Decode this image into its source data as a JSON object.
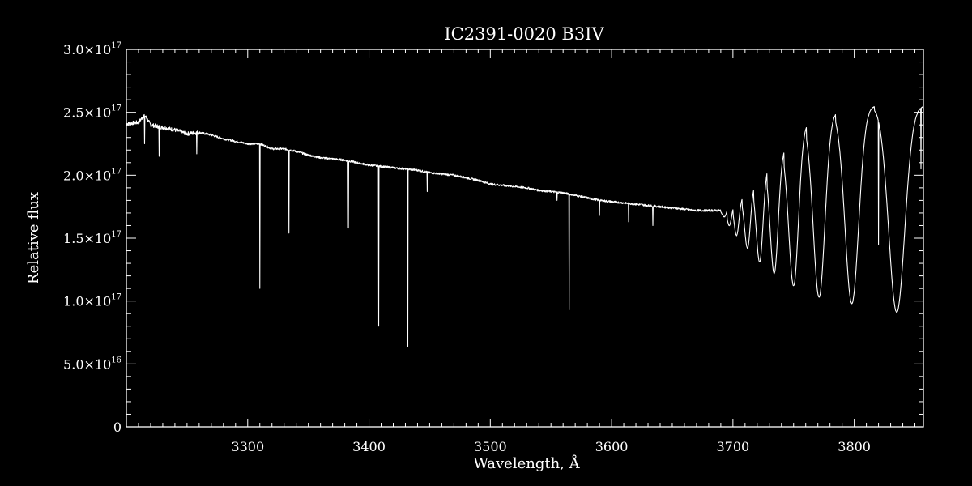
{
  "chart_data": {
    "type": "line",
    "title": "IC2391-0020   B3IV",
    "xlabel": "Wavelength, Å",
    "ylabel": "Relative flux",
    "xlim": [
      3200,
      3857
    ],
    "ylim": [
      0,
      3e+17
    ],
    "x_ticks": [
      {
        "value": 3300,
        "label": "3300"
      },
      {
        "value": 3400,
        "label": "3400"
      },
      {
        "value": 3500,
        "label": "3500"
      },
      {
        "value": 3600,
        "label": "3600"
      },
      {
        "value": 3700,
        "label": "3700"
      },
      {
        "value": 3800,
        "label": "3800"
      }
    ],
    "y_ticks": [
      {
        "value": 0,
        "mantissa": "0",
        "exponent": ""
      },
      {
        "value": 5e+16,
        "mantissa": "5.0×10",
        "exponent": "16"
      },
      {
        "value": 1e+17,
        "mantissa": "1.0×10",
        "exponent": "17"
      },
      {
        "value": 1.5e+17,
        "mantissa": "1.5×10",
        "exponent": "17"
      },
      {
        "value": 2e+17,
        "mantissa": "2.0×10",
        "exponent": "17"
      },
      {
        "value": 2.5e+17,
        "mantissa": "2.5×10",
        "exponent": "17"
      },
      {
        "value": 3e+17,
        "mantissa": "3.0×10",
        "exponent": "17"
      }
    ],
    "grid": false,
    "series": [
      {
        "x": [
          3200,
          3210,
          3215,
          3220,
          3230,
          3240,
          3250,
          3260,
          3270,
          3280,
          3290,
          3300,
          3310,
          3320,
          3330,
          3340,
          3350,
          3360,
          3370,
          3380,
          3390,
          3400,
          3410,
          3420,
          3430,
          3440,
          3450,
          3460,
          3470,
          3480,
          3490,
          3500,
          3510,
          3520,
          3530,
          3540,
          3550,
          3560,
          3570,
          3580,
          3590,
          3600,
          3610,
          3620,
          3630,
          3640,
          3650,
          3660,
          3670,
          3680,
          3690
        ],
        "y": [
          2.41e+17,
          2.42e+17,
          2.48e+17,
          2.4e+17,
          2.38e+17,
          2.36e+17,
          2.33e+17,
          2.34e+17,
          2.32e+17,
          2.29e+17,
          2.27e+17,
          2.25e+17,
          2.25e+17,
          2.21e+17,
          2.21e+17,
          2.19e+17,
          2.16e+17,
          2.14e+17,
          2.13e+17,
          2.12e+17,
          2.1e+17,
          2.08e+17,
          2.07e+17,
          2.06e+17,
          2.05e+17,
          2.04e+17,
          2.02e+17,
          2.01e+17,
          2e+17,
          1.98e+17,
          1.96e+17,
          1.93e+17,
          1.92e+17,
          1.91e+17,
          1.9e+17,
          1.88e+17,
          1.87e+17,
          1.86e+17,
          1.84e+17,
          1.82e+17,
          1.8e+17,
          1.79e+17,
          1.78e+17,
          1.77e+17,
          1.76e+17,
          1.75e+17,
          1.74e+17,
          1.73e+17,
          1.72e+17,
          1.72e+17,
          1.72e+17
        ]
      }
    ],
    "balmer_lines": [
      {
        "center": 3693,
        "min": 1.67e+17,
        "width": 1.8,
        "peak_after": 1.76e+17
      },
      {
        "center": 3697,
        "min": 1.6e+17,
        "width": 1.9,
        "peak_after": 1.78e+17
      },
      {
        "center": 3703,
        "min": 1.52e+17,
        "width": 2.0,
        "peak_after": 1.83e+17
      },
      {
        "center": 3712,
        "min": 1.42e+17,
        "width": 2.4,
        "peak_after": 1.94e+17
      },
      {
        "center": 3722,
        "min": 1.31e+17,
        "width": 2.8,
        "peak_after": 2.09e+17
      },
      {
        "center": 3734,
        "min": 1.22e+17,
        "width": 3.3,
        "peak_after": 2.23e+17
      },
      {
        "center": 3750,
        "min": 1.12e+17,
        "width": 4.0,
        "peak_after": 2.42e+17
      },
      {
        "center": 3771,
        "min": 1.03e+17,
        "width": 4.8,
        "peak_after": 2.51e+17
      },
      {
        "center": 3798,
        "min": 9.8e+16,
        "width": 5.6,
        "peak_after": 2.55e+17
      },
      {
        "center": 3835,
        "min": 9.1e+16,
        "width": 6.6,
        "peak_after": 2.55e+17
      }
    ],
    "absorption_features": [
      {
        "x": 3215,
        "min": 2.25e+17
      },
      {
        "x": 3227,
        "min": 2.15e+17
      },
      {
        "x": 3258,
        "min": 2.17e+17
      },
      {
        "x": 3310,
        "min": 1.1e+17
      },
      {
        "x": 3334,
        "min": 1.54e+17
      },
      {
        "x": 3383,
        "min": 1.58e+17
      },
      {
        "x": 3408,
        "min": 8e+16
      },
      {
        "x": 3432,
        "min": 6.4e+16
      },
      {
        "x": 3448,
        "min": 1.87e+17
      },
      {
        "x": 3555,
        "min": 1.8e+17
      },
      {
        "x": 3565,
        "min": 9.3e+16
      },
      {
        "x": 3590,
        "min": 1.68e+17
      },
      {
        "x": 3614,
        "min": 1.63e+17
      },
      {
        "x": 3634,
        "min": 1.6e+17
      },
      {
        "x": 3820,
        "min": 1.45e+17
      },
      {
        "x": 3855,
        "min": 2.05e+17
      }
    ]
  }
}
